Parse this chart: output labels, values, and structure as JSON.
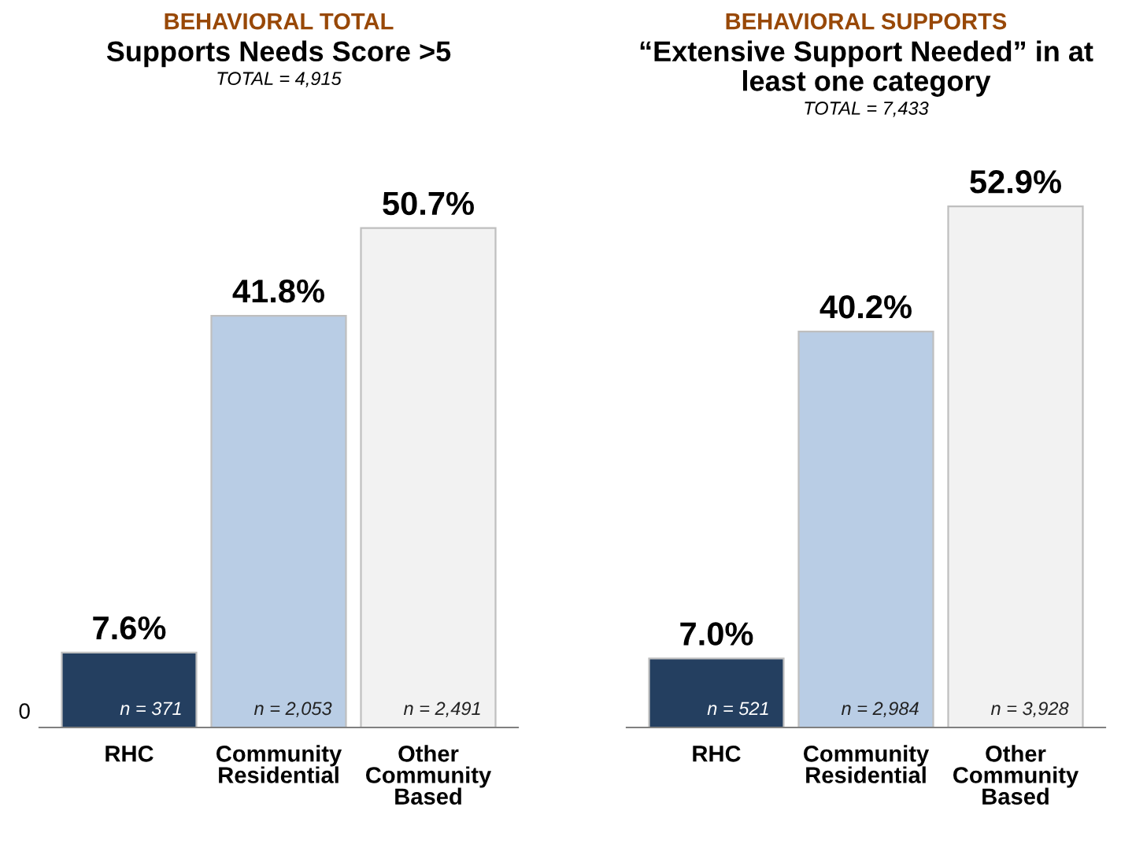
{
  "chart_data": [
    {
      "type": "bar",
      "title": "BEHAVIORAL TOTAL",
      "subtitle": "Supports Needs Score >5",
      "categories": [
        "RHC",
        "Community\nResidential",
        "Other\nCommunity\nBased"
      ],
      "values": [
        7.6,
        41.8,
        50.7
      ],
      "value_labels": [
        "7.6%",
        "41.8%",
        "50.7%"
      ],
      "colors": [
        "#243f60",
        "#b9cde5",
        "#f2f2f2"
      ],
      "grid": false,
      "legend": false,
      "annotations": [
        "TOTAL = 4,915",
        "0",
        {
          "text": "n = 371",
          "x": "RHC",
          "y": 0
        },
        {
          "text": "n = 2,053",
          "x": "Community\nResidential",
          "y": 0
        },
        {
          "text": "n = 2,491",
          "x": "Other\nCommunity\nBased",
          "y": 0
        }
      ]
    },
    {
      "type": "bar",
      "title": "BEHAVIORAL SUPPORTS",
      "subtitle": "“Extensive Support Needed” in at\nleast one category",
      "categories": [
        "RHC",
        "Community\nResidential",
        "Other\nCommunity\nBased"
      ],
      "values": [
        7.0,
        40.2,
        52.9
      ],
      "value_labels": [
        "7.0%",
        "40.2%",
        "52.9%"
      ],
      "colors": [
        "#243f60",
        "#b9cde5",
        "#f2f2f2"
      ],
      "grid": false,
      "legend": false,
      "annotations": [
        "TOTAL = 7,433",
        {
          "text": "n = 521",
          "x": "RHC",
          "y": 0
        },
        {
          "text": "n = 2,984",
          "x": "Community\nResidential",
          "y": 0
        },
        {
          "text": "n = 3,928",
          "x": "Other\nCommunity\nBased",
          "y": 0
        }
      ]
    }
  ]
}
